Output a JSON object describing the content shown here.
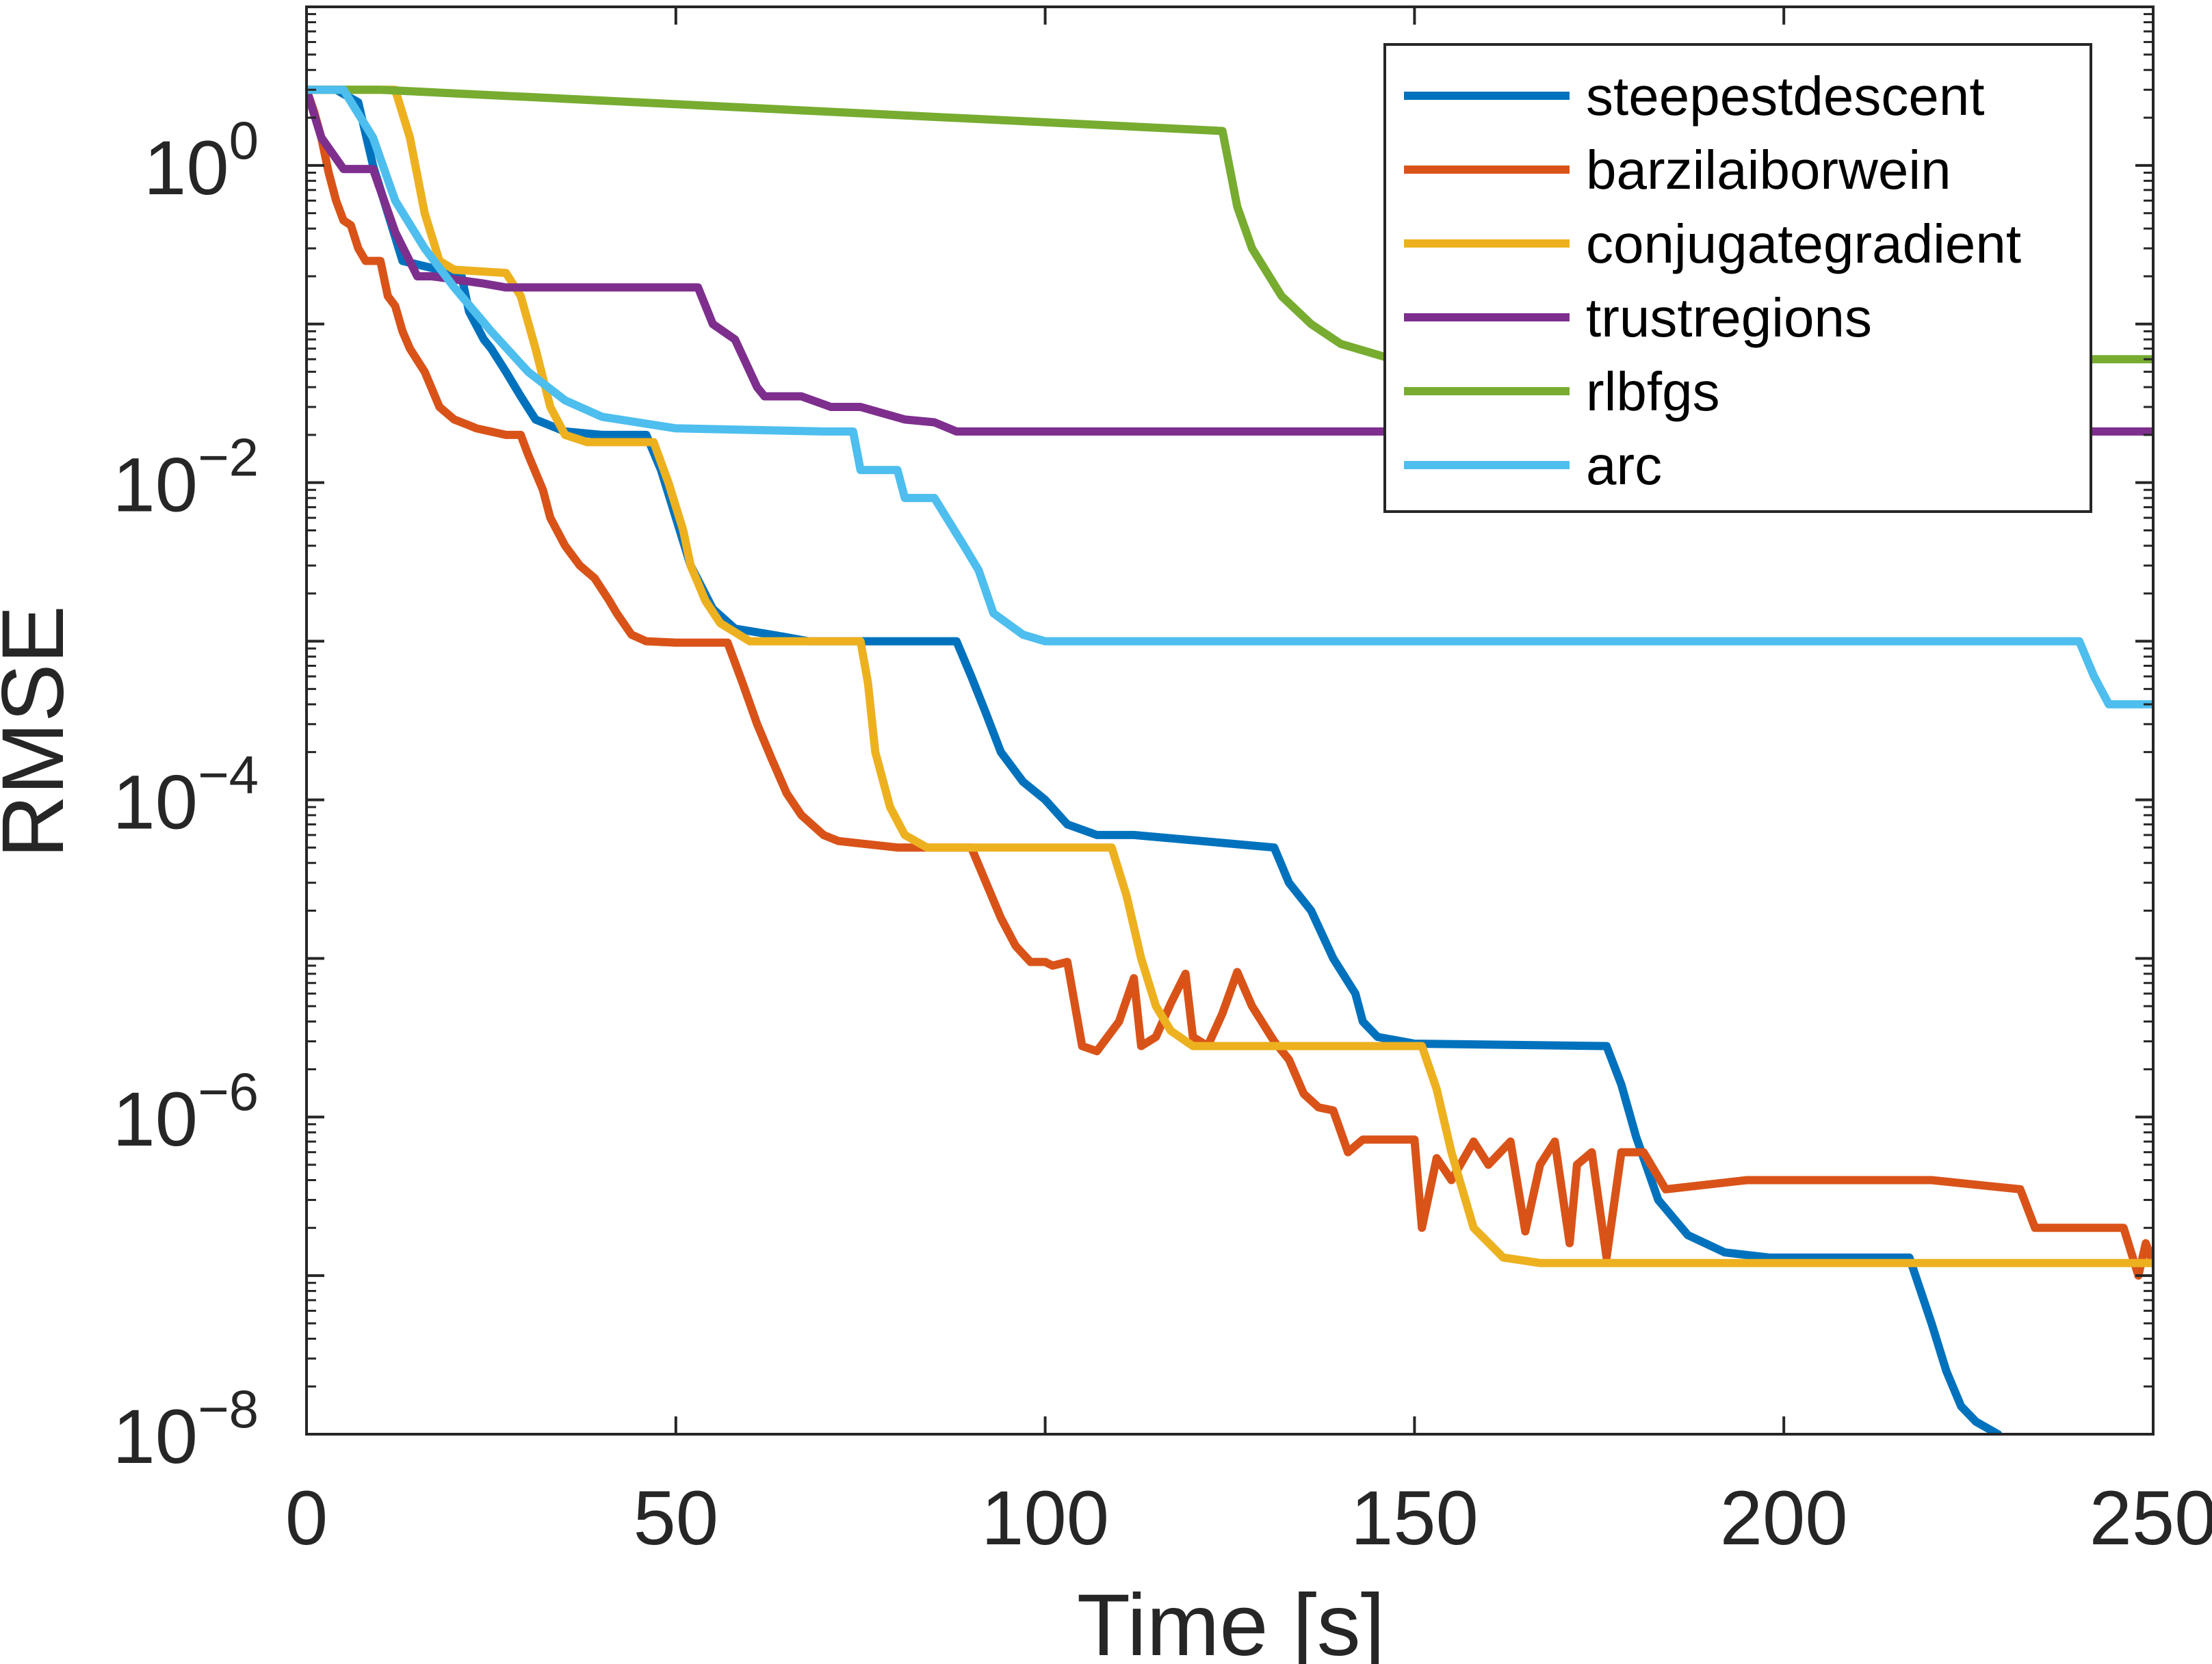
{
  "chart_data": {
    "type": "line",
    "title": "",
    "xlabel": "Time [s]",
    "ylabel": "RMSE",
    "xlim": [
      0,
      250
    ],
    "ylim": [
      1e-08,
      10
    ],
    "yscale": "log",
    "x_ticks": [
      0,
      50,
      100,
      150,
      200,
      250
    ],
    "x_tick_labels": [
      "0",
      "50",
      "100",
      "150",
      "200",
      "250"
    ],
    "y_ticks": [
      {
        "value": 1,
        "base": "10",
        "exp": "0"
      },
      {
        "value": 0.01,
        "base": "10",
        "exp": "−2"
      },
      {
        "value": 0.0001,
        "base": "10",
        "exp": "−4"
      },
      {
        "value": 1e-06,
        "base": "10",
        "exp": "−6"
      },
      {
        "value": 1e-08,
        "base": "10",
        "exp": "−8"
      }
    ],
    "grid": false,
    "box": true,
    "legend_position": "top-right",
    "series": [
      {
        "name": "steepestdescent",
        "color": "#0072BD",
        "points": [
          [
            0,
            3
          ],
          [
            4,
            3
          ],
          [
            7,
            2.5
          ],
          [
            9,
            1.0
          ],
          [
            11,
            0.5
          ],
          [
            13,
            0.25
          ],
          [
            18,
            0.22
          ],
          [
            21,
            0.2
          ],
          [
            22,
            0.12
          ],
          [
            24,
            0.08
          ],
          [
            25,
            0.07
          ],
          [
            27,
            0.05
          ],
          [
            29,
            0.035
          ],
          [
            31,
            0.025
          ],
          [
            35,
            0.021
          ],
          [
            40,
            0.02
          ],
          [
            46,
            0.02
          ],
          [
            48,
            0.012
          ],
          [
            50,
            0.006
          ],
          [
            52,
            0.003
          ],
          [
            55,
            0.0016
          ],
          [
            58,
            0.0012
          ],
          [
            63,
            0.0011
          ],
          [
            68,
            0.001
          ],
          [
            88,
            0.001
          ],
          [
            90,
            0.0006
          ],
          [
            92,
            0.00035
          ],
          [
            94,
            0.0002
          ],
          [
            97,
            0.00013
          ],
          [
            100,
            0.0001
          ],
          [
            103,
            7e-05
          ],
          [
            107,
            6e-05
          ],
          [
            112,
            6e-05
          ],
          [
            131,
            5e-05
          ],
          [
            133,
            3e-05
          ],
          [
            136,
            2e-05
          ],
          [
            139,
            1e-05
          ],
          [
            142,
            6e-06
          ],
          [
            143,
            4e-06
          ],
          [
            145,
            3.2e-06
          ],
          [
            150,
            2.9e-06
          ],
          [
            176,
            2.8e-06
          ],
          [
            178,
            1.6e-06
          ],
          [
            180,
            7.5e-07
          ],
          [
            183,
            3e-07
          ],
          [
            187,
            1.8e-07
          ],
          [
            192,
            1.4e-07
          ],
          [
            198,
            1.3e-07
          ],
          [
            217,
            1.3e-07
          ],
          [
            220,
            5e-08
          ],
          [
            222,
            2.5e-08
          ],
          [
            224,
            1.5e-08
          ],
          [
            226,
            1.2e-08
          ],
          [
            229,
            1e-08
          ]
        ]
      },
      {
        "name": "barzilaiborwein",
        "color": "#D95319",
        "points": [
          [
            0,
            3
          ],
          [
            1,
            2.2
          ],
          [
            2,
            1.5
          ],
          [
            3,
            0.9
          ],
          [
            4,
            0.6
          ],
          [
            5,
            0.45
          ],
          [
            6,
            0.42
          ],
          [
            7,
            0.3
          ],
          [
            8,
            0.25
          ],
          [
            10,
            0.25
          ],
          [
            11,
            0.15
          ],
          [
            12,
            0.13
          ],
          [
            13,
            0.09
          ],
          [
            14,
            0.07
          ],
          [
            16,
            0.05
          ],
          [
            18,
            0.03
          ],
          [
            20,
            0.025
          ],
          [
            22,
            0.023
          ],
          [
            23,
            0.022
          ],
          [
            27,
            0.02
          ],
          [
            29,
            0.02
          ],
          [
            30,
            0.015
          ],
          [
            32,
            0.009
          ],
          [
            33,
            0.006
          ],
          [
            35,
            0.004
          ],
          [
            37,
            0.003
          ],
          [
            39,
            0.0025
          ],
          [
            41,
            0.0018
          ],
          [
            42,
            0.0015
          ],
          [
            44,
            0.0011
          ],
          [
            46,
            0.001
          ],
          [
            50,
            0.00098
          ],
          [
            57,
            0.00098
          ],
          [
            59,
            0.00055
          ],
          [
            61,
            0.0003
          ],
          [
            63,
            0.00018
          ],
          [
            65,
            0.00011
          ],
          [
            67,
            8e-05
          ],
          [
            70,
            6e-05
          ],
          [
            72,
            5.5e-05
          ],
          [
            80,
            5e-05
          ],
          [
            90,
            5e-05
          ],
          [
            92,
            3e-05
          ],
          [
            94,
            1.8e-05
          ],
          [
            96,
            1.2e-05
          ],
          [
            98,
            9.5e-06
          ],
          [
            100,
            9.5e-06
          ],
          [
            101,
            9e-06
          ],
          [
            103,
            9.5e-06
          ],
          [
            105,
            2.8e-06
          ],
          [
            107,
            2.6e-06
          ],
          [
            110,
            4e-06
          ],
          [
            112,
            7.5e-06
          ],
          [
            113,
            2.8e-06
          ],
          [
            115,
            3.2e-06
          ],
          [
            117,
            5.2e-06
          ],
          [
            119,
            8e-06
          ],
          [
            120,
            3.2e-06
          ],
          [
            122,
            2.8e-06
          ],
          [
            124,
            4.5e-06
          ],
          [
            126,
            8.2e-06
          ],
          [
            128,
            5e-06
          ],
          [
            131,
            3e-06
          ],
          [
            133,
            2.3e-06
          ],
          [
            135,
            1.4e-06
          ],
          [
            137,
            1.15e-06
          ],
          [
            139,
            1.1e-06
          ],
          [
            141,
            6e-07
          ],
          [
            143,
            7.2e-07
          ],
          [
            150,
            7.2e-07
          ],
          [
            151,
            2e-07
          ],
          [
            153,
            5.5e-07
          ],
          [
            155,
            4e-07
          ],
          [
            158,
            7e-07
          ],
          [
            160,
            5e-07
          ],
          [
            163,
            7e-07
          ],
          [
            165,
            1.9e-07
          ],
          [
            167,
            5e-07
          ],
          [
            169,
            7e-07
          ],
          [
            171,
            1.6e-07
          ],
          [
            172,
            5e-07
          ],
          [
            174,
            6e-07
          ],
          [
            176,
            1.3e-07
          ],
          [
            178,
            6e-07
          ],
          [
            181,
            6e-07
          ],
          [
            184,
            3.5e-07
          ],
          [
            195,
            4e-07
          ],
          [
            220,
            4e-07
          ],
          [
            232,
            3.5e-07
          ],
          [
            234,
            2e-07
          ],
          [
            246,
            2e-07
          ],
          [
            248,
            1e-07
          ],
          [
            249,
            1.6e-07
          ],
          [
            250,
            1.2e-07
          ]
        ]
      },
      {
        "name": "conjugategradient",
        "color": "#EDB120",
        "points": [
          [
            0,
            3
          ],
          [
            12,
            3
          ],
          [
            14,
            1.5
          ],
          [
            16,
            0.5
          ],
          [
            18,
            0.25
          ],
          [
            20,
            0.22
          ],
          [
            27,
            0.21
          ],
          [
            29,
            0.15
          ],
          [
            31,
            0.07
          ],
          [
            33,
            0.03
          ],
          [
            35,
            0.02
          ],
          [
            38,
            0.018
          ],
          [
            47,
            0.018
          ],
          [
            49,
            0.01
          ],
          [
            51,
            0.005
          ],
          [
            52,
            0.003
          ],
          [
            54,
            0.0018
          ],
          [
            56,
            0.0013
          ],
          [
            60,
            0.001
          ],
          [
            75,
            0.001
          ],
          [
            76,
            0.00055
          ],
          [
            77,
            0.0002
          ],
          [
            79,
            9e-05
          ],
          [
            81,
            6e-05
          ],
          [
            84,
            5e-05
          ],
          [
            109,
            5e-05
          ],
          [
            111,
            2.5e-05
          ],
          [
            113,
            1e-05
          ],
          [
            115,
            5e-06
          ],
          [
            117,
            3.5e-06
          ],
          [
            120,
            2.8e-06
          ],
          [
            151,
            2.8e-06
          ],
          [
            153,
            1.5e-06
          ],
          [
            155,
            6e-07
          ],
          [
            158,
            2e-07
          ],
          [
            162,
            1.3e-07
          ],
          [
            167,
            1.2e-07
          ],
          [
            250,
            1.2e-07
          ]
        ]
      },
      {
        "name": "trustregions",
        "color": "#7E2F8E",
        "points": [
          [
            0,
            3
          ],
          [
            2,
            1.5
          ],
          [
            5,
            0.95
          ],
          [
            9,
            0.95
          ],
          [
            12,
            0.38
          ],
          [
            15,
            0.2
          ],
          [
            17,
            0.2
          ],
          [
            24,
            0.18
          ],
          [
            27,
            0.17
          ],
          [
            53,
            0.17
          ],
          [
            55,
            0.1
          ],
          [
            58,
            0.08
          ],
          [
            61,
            0.04
          ],
          [
            62,
            0.035
          ],
          [
            67,
            0.035
          ],
          [
            71,
            0.03
          ],
          [
            75,
            0.03
          ],
          [
            81,
            0.025
          ],
          [
            85,
            0.024
          ],
          [
            88,
            0.021
          ],
          [
            92,
            0.021
          ],
          [
            250,
            0.021
          ]
        ]
      },
      {
        "name": "rlbfgs",
        "color": "#77AC30",
        "points": [
          [
            0,
            3
          ],
          [
            10,
            3
          ],
          [
            124,
            1.65
          ],
          [
            126,
            0.55
          ],
          [
            128,
            0.3
          ],
          [
            132,
            0.15
          ],
          [
            136,
            0.1
          ],
          [
            140,
            0.075
          ],
          [
            146,
            0.062
          ],
          [
            150,
            0.06
          ],
          [
            250,
            0.06
          ]
        ]
      },
      {
        "name": "arc",
        "color": "#4DBEEE",
        "points": [
          [
            0,
            3
          ],
          [
            5,
            3
          ],
          [
            9,
            1.5
          ],
          [
            12,
            0.6
          ],
          [
            16,
            0.3
          ],
          [
            20,
            0.17
          ],
          [
            25,
            0.09
          ],
          [
            30,
            0.05
          ],
          [
            35,
            0.033
          ],
          [
            40,
            0.026
          ],
          [
            50,
            0.022
          ],
          [
            70,
            0.021
          ],
          [
            74,
            0.021
          ],
          [
            75,
            0.012
          ],
          [
            80,
            0.012
          ],
          [
            81,
            0.008
          ],
          [
            85,
            0.008
          ],
          [
            89,
            0.004
          ],
          [
            91,
            0.0028
          ],
          [
            93,
            0.0015
          ],
          [
            97,
            0.0011
          ],
          [
            100,
            0.001
          ],
          [
            240,
            0.001
          ],
          [
            242,
            0.0006
          ],
          [
            244,
            0.0004
          ],
          [
            250,
            0.0004
          ]
        ]
      }
    ]
  }
}
